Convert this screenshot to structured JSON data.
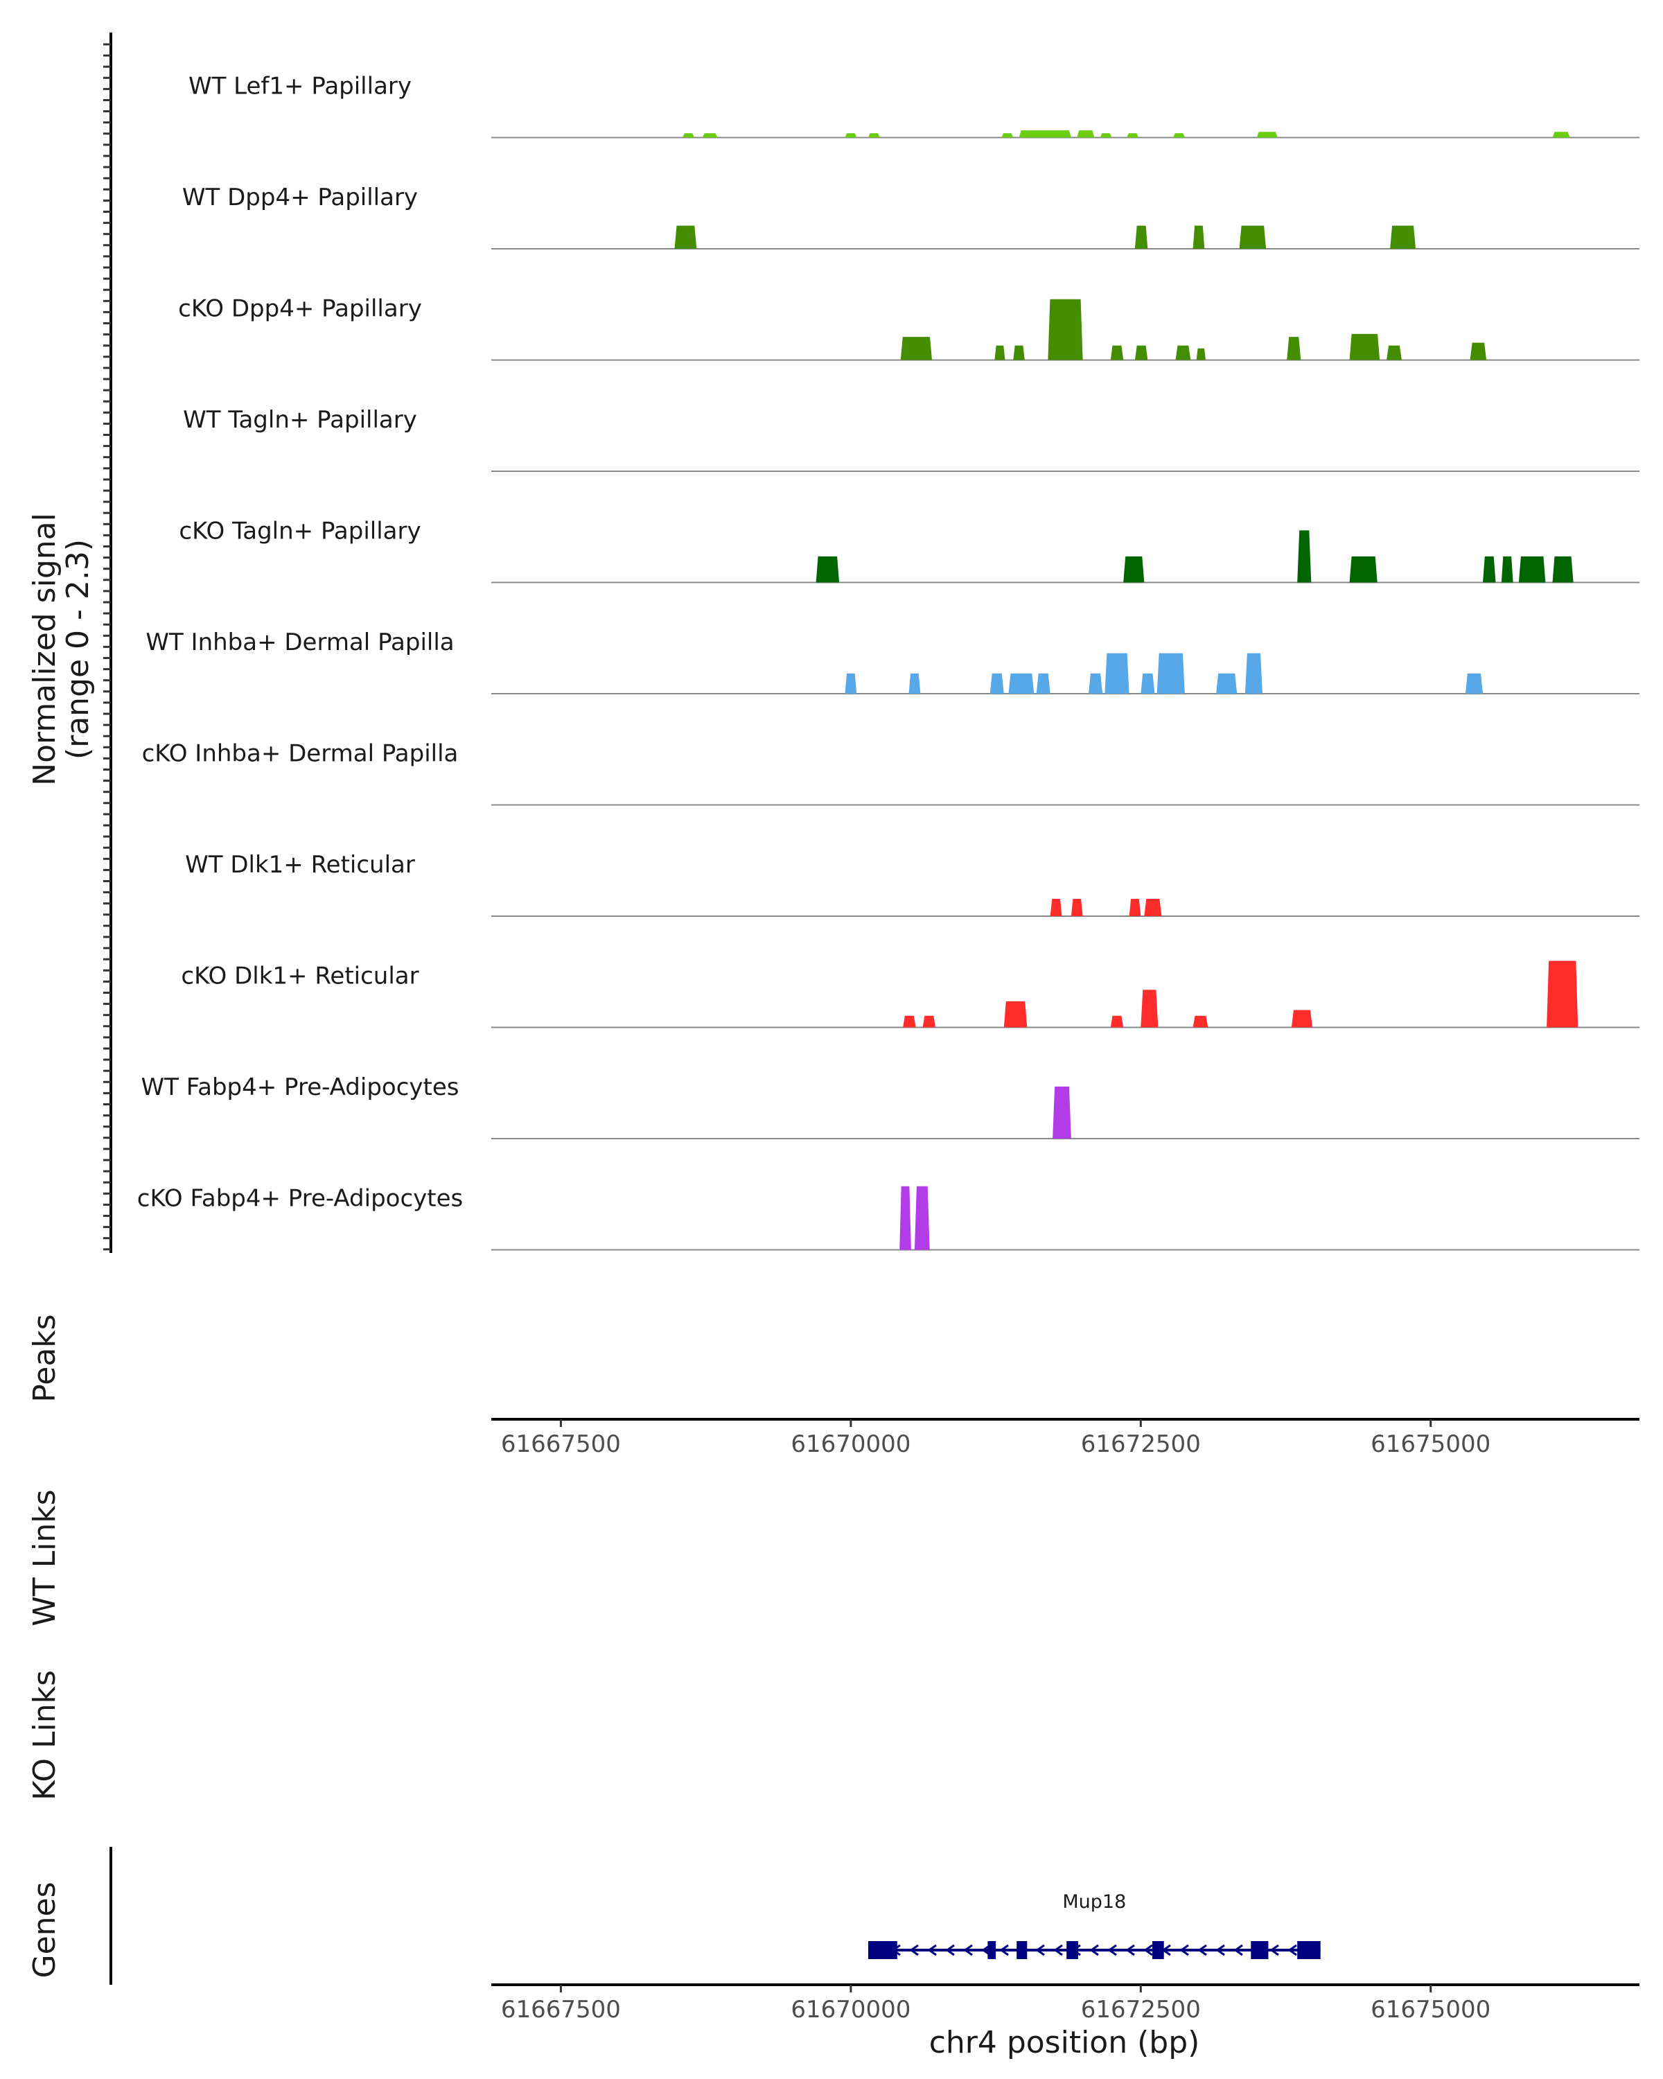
{
  "chart_data": {
    "type": "area",
    "title": "",
    "region": "chr4",
    "ylabel": [
      "Normalized signal",
      "(range 0 - 2.3)"
    ],
    "ylim": [
      0,
      2.3
    ],
    "xlim": [
      61666900,
      61676800
    ],
    "xticks": [
      61667500,
      61670000,
      61672500,
      61675000
    ],
    "xtick_labels": [
      "61667500",
      "61670000",
      "61672500",
      "61675000"
    ],
    "xlabel": "chr4 position (bp)",
    "tracks": [
      {
        "name": "WT Lef1+ Papillary",
        "color": "#6ACD12",
        "segments": [
          {
            "start": 61668550,
            "end": 61668650,
            "value": 0.15
          },
          {
            "start": 61668720,
            "end": 61668850,
            "value": 0.15
          },
          {
            "start": 61669950,
            "end": 61670050,
            "value": 0.15
          },
          {
            "start": 61670150,
            "end": 61670250,
            "value": 0.15
          },
          {
            "start": 61671300,
            "end": 61671400,
            "value": 0.15
          },
          {
            "start": 61671450,
            "end": 61671900,
            "value": 0.25
          },
          {
            "start": 61671950,
            "end": 61672100,
            "value": 0.25
          },
          {
            "start": 61672150,
            "end": 61672250,
            "value": 0.15
          },
          {
            "start": 61672380,
            "end": 61672480,
            "value": 0.15
          },
          {
            "start": 61672780,
            "end": 61672880,
            "value": 0.15
          },
          {
            "start": 61673500,
            "end": 61673680,
            "value": 0.2
          },
          {
            "start": 61676050,
            "end": 61676200,
            "value": 0.2
          }
        ]
      },
      {
        "name": "WT Dpp4+ Papillary",
        "color": "#448C00",
        "segments": [
          {
            "start": 61668480,
            "end": 61668670,
            "value": 0.8
          },
          {
            "start": 61672450,
            "end": 61672560,
            "value": 0.8
          },
          {
            "start": 61672950,
            "end": 61673050,
            "value": 0.8
          },
          {
            "start": 61673350,
            "end": 61673580,
            "value": 0.8
          },
          {
            "start": 61674650,
            "end": 61674870,
            "value": 0.8
          }
        ]
      },
      {
        "name": "cKO Dpp4+ Papillary",
        "color": "#448C00",
        "segments": [
          {
            "start": 61670430,
            "end": 61670700,
            "value": 0.8
          },
          {
            "start": 61671240,
            "end": 61671330,
            "value": 0.5
          },
          {
            "start": 61671400,
            "end": 61671500,
            "value": 0.5
          },
          {
            "start": 61671700,
            "end": 61672000,
            "value": 2.1
          },
          {
            "start": 61672240,
            "end": 61672350,
            "value": 0.5
          },
          {
            "start": 61672450,
            "end": 61672560,
            "value": 0.5
          },
          {
            "start": 61672800,
            "end": 61672930,
            "value": 0.5
          },
          {
            "start": 61672980,
            "end": 61673060,
            "value": 0.4
          },
          {
            "start": 61673760,
            "end": 61673880,
            "value": 0.8
          },
          {
            "start": 61674300,
            "end": 61674560,
            "value": 0.9
          },
          {
            "start": 61674620,
            "end": 61674750,
            "value": 0.5
          },
          {
            "start": 61675340,
            "end": 61675480,
            "value": 0.6
          }
        ]
      },
      {
        "name": "WT Tagln+ Papillary",
        "color": "#006400",
        "segments": []
      },
      {
        "name": "cKO Tagln+ Papillary",
        "color": "#006400",
        "segments": [
          {
            "start": 61669700,
            "end": 61669900,
            "value": 0.9
          },
          {
            "start": 61672350,
            "end": 61672530,
            "value": 0.9
          },
          {
            "start": 61673850,
            "end": 61673970,
            "value": 1.8
          },
          {
            "start": 61674300,
            "end": 61674540,
            "value": 0.9
          },
          {
            "start": 61675450,
            "end": 61675560,
            "value": 0.9
          },
          {
            "start": 61675610,
            "end": 61675710,
            "value": 0.9
          },
          {
            "start": 61675760,
            "end": 61675990,
            "value": 0.9
          },
          {
            "start": 61676050,
            "end": 61676230,
            "value": 0.9
          }
        ]
      },
      {
        "name": "WT Inhba+ Dermal Papilla",
        "color": "#56A8E8",
        "segments": [
          {
            "start": 61669950,
            "end": 61670050,
            "value": 0.7
          },
          {
            "start": 61670500,
            "end": 61670600,
            "value": 0.7
          },
          {
            "start": 61671200,
            "end": 61671320,
            "value": 0.7
          },
          {
            "start": 61671360,
            "end": 61671580,
            "value": 0.7
          },
          {
            "start": 61671600,
            "end": 61671720,
            "value": 0.7
          },
          {
            "start": 61672050,
            "end": 61672170,
            "value": 0.7
          },
          {
            "start": 61672190,
            "end": 61672400,
            "value": 1.4
          },
          {
            "start": 61672500,
            "end": 61672620,
            "value": 0.7
          },
          {
            "start": 61672640,
            "end": 61672880,
            "value": 1.4
          },
          {
            "start": 61673150,
            "end": 61673330,
            "value": 0.7
          },
          {
            "start": 61673400,
            "end": 61673550,
            "value": 1.4
          },
          {
            "start": 61675300,
            "end": 61675450,
            "value": 0.7
          }
        ]
      },
      {
        "name": "cKO Inhba+ Dermal Papilla",
        "color": "#56A8E8",
        "segments": []
      },
      {
        "name": "WT Dlk1+ Reticular",
        "color": "#FF2C2C",
        "segments": [
          {
            "start": 61671720,
            "end": 61671820,
            "value": 0.6
          },
          {
            "start": 61671900,
            "end": 61672000,
            "value": 0.6
          },
          {
            "start": 61672400,
            "end": 61672500,
            "value": 0.6
          },
          {
            "start": 61672530,
            "end": 61672680,
            "value": 0.6
          }
        ]
      },
      {
        "name": "cKO Dlk1+ Reticular",
        "color": "#FF2C2C",
        "segments": [
          {
            "start": 61670450,
            "end": 61670560,
            "value": 0.4
          },
          {
            "start": 61670620,
            "end": 61670730,
            "value": 0.4
          },
          {
            "start": 61671320,
            "end": 61671520,
            "value": 0.9
          },
          {
            "start": 61672240,
            "end": 61672350,
            "value": 0.4
          },
          {
            "start": 61672500,
            "end": 61672650,
            "value": 1.3
          },
          {
            "start": 61672950,
            "end": 61673080,
            "value": 0.4
          },
          {
            "start": 61673800,
            "end": 61673980,
            "value": 0.6
          },
          {
            "start": 61676000,
            "end": 61676270,
            "value": 2.3
          }
        ]
      },
      {
        "name": "WT Fabp4+ Pre-Adipocytes",
        "color": "#B23CE8",
        "segments": [
          {
            "start": 61671740,
            "end": 61671900,
            "value": 1.8
          }
        ]
      },
      {
        "name": "cKO Fabp4+ Pre-Adipocytes",
        "color": "#B23CE8",
        "segments": [
          {
            "start": 61670420,
            "end": 61670520,
            "value": 2.2
          },
          {
            "start": 61670550,
            "end": 61670680,
            "value": 2.2
          }
        ]
      }
    ],
    "extra_tracks": [
      "Peaks",
      "WT Links",
      "KO Links",
      "Genes"
    ],
    "genes": [
      {
        "name": "Mup18",
        "start": 61670150,
        "end": 61674050,
        "strand": "-",
        "color": "#000080",
        "exons": [
          [
            61670150,
            61670400
          ],
          [
            61671180,
            61671250
          ],
          [
            61671430,
            61671520
          ],
          [
            61671860,
            61671960
          ],
          [
            61672600,
            61672700
          ],
          [
            61673450,
            61673600
          ],
          [
            61673850,
            61674050
          ]
        ]
      }
    ]
  }
}
